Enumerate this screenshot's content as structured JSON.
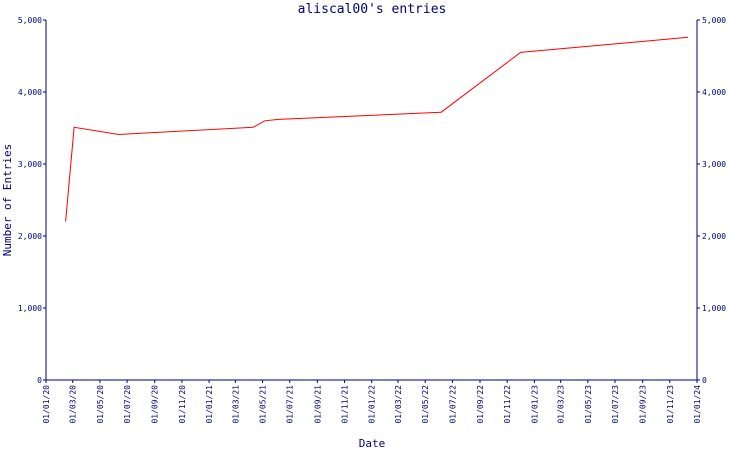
{
  "chart_data": {
    "type": "line",
    "title": "aliscal00's entries",
    "xlabel": "Date",
    "ylabel": "Number of Entries",
    "ylim": [
      0,
      5000
    ],
    "yticks": [
      0,
      1000,
      2000,
      3000,
      4000,
      5000
    ],
    "ytick_labels": [
      "0",
      "1,000",
      "2,000",
      "3,000",
      "4,000",
      "5,000"
    ],
    "right_axis_ticks": true,
    "xlim": [
      "2020-01-01",
      "2024-01-01"
    ],
    "xticks": [
      "2020-01-01",
      "2020-03-01",
      "2020-05-01",
      "2020-07-01",
      "2020-09-01",
      "2020-11-01",
      "2021-01-01",
      "2021-03-01",
      "2021-05-01",
      "2021-07-01",
      "2021-09-01",
      "2021-11-01",
      "2022-01-01",
      "2022-03-01",
      "2022-05-01",
      "2022-07-01",
      "2022-09-01",
      "2022-11-01",
      "2023-01-01",
      "2023-03-01",
      "2023-05-01",
      "2023-07-01",
      "2023-09-01",
      "2023-11-01",
      "2024-01-01"
    ],
    "xtick_labels": [
      "01/01/20",
      "01/03/20",
      "01/05/20",
      "01/07/20",
      "01/09/20",
      "01/11/20",
      "01/01/21",
      "01/03/21",
      "01/05/21",
      "01/07/21",
      "01/09/21",
      "01/11/21",
      "01/01/22",
      "01/03/22",
      "01/05/22",
      "01/07/22",
      "01/09/22",
      "01/11/22",
      "01/01/23",
      "01/03/23",
      "01/05/23",
      "01/07/23",
      "01/09/23",
      "01/11/23",
      "01/01/24"
    ],
    "grid": false,
    "series": [
      {
        "color": "#ff0000",
        "x": [
          "2020-02-14",
          "2020-03-04",
          "2020-06-12",
          "2021-04-10",
          "2021-05-06",
          "2021-06-06",
          "2022-06-06",
          "2022-12-01",
          "2023-12-12"
        ],
        "y": [
          2200,
          3510,
          3410,
          3510,
          3600,
          3620,
          3720,
          4550,
          4760
        ]
      }
    ]
  }
}
